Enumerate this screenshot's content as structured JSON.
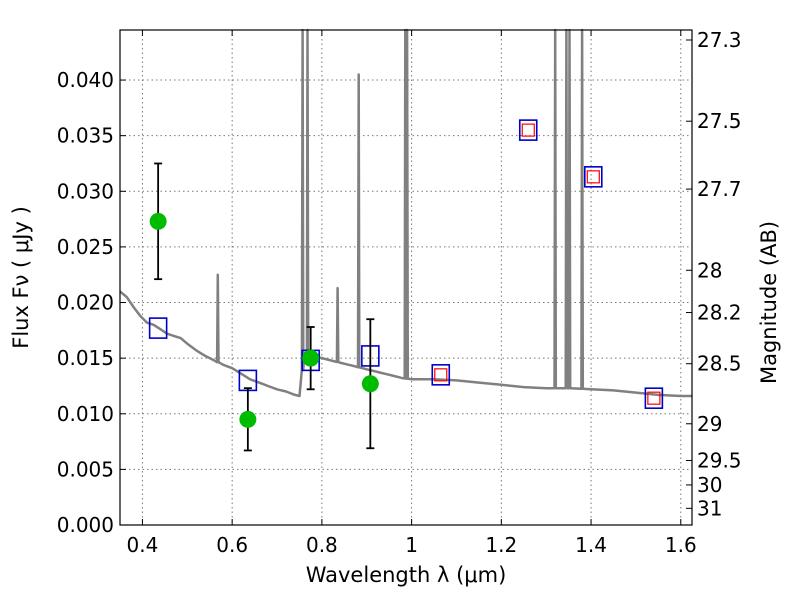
{
  "chart_data": {
    "type": "scatter",
    "title": "",
    "xlabel": "Wavelength  λ (μm)",
    "ylabel": "Flux  Fν  ( μJy )",
    "y2label": "Magnitude (AB)",
    "xlim": [
      0.35,
      1.625
    ],
    "ylim": [
      0.0,
      0.0445
    ],
    "grid": true,
    "legend": "none",
    "x_ticks": [
      0.4,
      0.6,
      0.8,
      1.0,
      1.2,
      1.4,
      1.6
    ],
    "x_tick_labels": [
      "0.4",
      "0.6",
      "0.8",
      "1",
      "1.2",
      "1.4",
      "1.6"
    ],
    "y_ticks": [
      0.0,
      0.005,
      0.01,
      0.015,
      0.02,
      0.025,
      0.03,
      0.035,
      0.04
    ],
    "y_tick_labels": [
      "0.000",
      "0.005",
      "0.010",
      "0.015",
      "0.020",
      "0.025",
      "0.030",
      "0.035",
      "0.040"
    ],
    "y2_ticks": [
      {
        "label": "27.3",
        "flux": 0.0436
      },
      {
        "label": "27.5",
        "flux": 0.0363
      },
      {
        "label": "27.7",
        "flux": 0.0302
      },
      {
        "label": "28",
        "flux": 0.0229
      },
      {
        "label": "28.2",
        "flux": 0.0191
      },
      {
        "label": "28.5",
        "flux": 0.0145
      },
      {
        "label": "29",
        "flux": 0.0091
      },
      {
        "label": "29.5",
        "flux": 0.0058
      },
      {
        "label": "30",
        "flux": 0.0036
      },
      {
        "label": "31",
        "flux": 0.0015
      }
    ],
    "colors": {
      "observed": "#00bb00",
      "model_square": "#0000cc",
      "model_inner": "#ff0000",
      "spectrum": "#808080"
    },
    "series": [
      {
        "kind": "observed",
        "points": [
          {
            "x": 0.435,
            "y": 0.0273,
            "err": 0.0052
          },
          {
            "x": 0.635,
            "y": 0.0095,
            "err": 0.0028
          },
          {
            "x": 0.775,
            "y": 0.015,
            "err": 0.0028
          },
          {
            "x": 0.908,
            "y": 0.0127,
            "err": 0.0058
          }
        ]
      },
      {
        "kind": "model_photometry",
        "points": [
          {
            "x": 0.435,
            "y": 0.0177,
            "inner": false
          },
          {
            "x": 0.635,
            "y": 0.013,
            "inner": false
          },
          {
            "x": 0.775,
            "y": 0.0148,
            "inner": false
          },
          {
            "x": 0.908,
            "y": 0.0152,
            "inner": false
          },
          {
            "x": 1.065,
            "y": 0.0135,
            "inner": true
          },
          {
            "x": 1.26,
            "y": 0.0355,
            "inner": true
          },
          {
            "x": 1.405,
            "y": 0.0313,
            "inner": true
          },
          {
            "x": 1.54,
            "y": 0.0114,
            "inner": true
          }
        ]
      },
      {
        "kind": "spectrum",
        "line": [
          [
            0.35,
            0.021
          ],
          [
            0.365,
            0.0205
          ],
          [
            0.38,
            0.0196
          ],
          [
            0.395,
            0.0188
          ],
          [
            0.41,
            0.0182
          ],
          [
            0.425,
            0.018
          ],
          [
            0.44,
            0.0176
          ],
          [
            0.455,
            0.0172
          ],
          [
            0.47,
            0.017
          ],
          [
            0.485,
            0.0168
          ],
          [
            0.5,
            0.0163
          ],
          [
            0.52,
            0.0157
          ],
          [
            0.54,
            0.0152
          ],
          [
            0.56,
            0.0148
          ],
          [
            0.58,
            0.0144
          ],
          [
            0.6,
            0.0141
          ],
          [
            0.62,
            0.0136
          ],
          [
            0.64,
            0.0131
          ],
          [
            0.66,
            0.0128
          ],
          [
            0.68,
            0.0125
          ],
          [
            0.7,
            0.0122
          ],
          [
            0.72,
            0.012
          ],
          [
            0.74,
            0.0117
          ],
          [
            0.75,
            0.0116
          ],
          [
            0.76,
            0.015
          ],
          [
            0.78,
            0.0152
          ],
          [
            0.8,
            0.015
          ],
          [
            0.82,
            0.0148
          ],
          [
            0.84,
            0.0146
          ],
          [
            0.86,
            0.0144
          ],
          [
            0.88,
            0.0142
          ],
          [
            0.9,
            0.014
          ],
          [
            0.92,
            0.0138
          ],
          [
            0.94,
            0.0136
          ],
          [
            0.96,
            0.0134
          ],
          [
            0.98,
            0.0132
          ],
          [
            1.0,
            0.0131
          ],
          [
            1.05,
            0.0131
          ],
          [
            1.1,
            0.013
          ],
          [
            1.15,
            0.0128
          ],
          [
            1.2,
            0.0126
          ],
          [
            1.25,
            0.0124
          ],
          [
            1.3,
            0.0123
          ],
          [
            1.35,
            0.0123
          ],
          [
            1.4,
            0.0122
          ],
          [
            1.45,
            0.0121
          ],
          [
            1.5,
            0.0119
          ],
          [
            1.55,
            0.0117
          ],
          [
            1.6,
            0.0116
          ],
          [
            1.625,
            0.0116
          ]
        ],
        "lines": [
          {
            "x": 0.568,
            "peak": 0.0225
          },
          {
            "x": 0.757,
            "peak": 0.0445
          },
          {
            "x": 0.768,
            "peak": 0.0445
          },
          {
            "x": 0.835,
            "peak": 0.0213
          },
          {
            "x": 0.882,
            "peak": 0.0405
          },
          {
            "x": 0.986,
            "peak": 0.0445
          },
          {
            "x": 0.99,
            "peak": 0.0445
          },
          {
            "x": 1.32,
            "peak": 0.0445
          },
          {
            "x": 1.345,
            "peak": 0.0445
          },
          {
            "x": 1.352,
            "peak": 0.0445
          },
          {
            "x": 1.38,
            "peak": 0.0445
          }
        ]
      }
    ]
  }
}
